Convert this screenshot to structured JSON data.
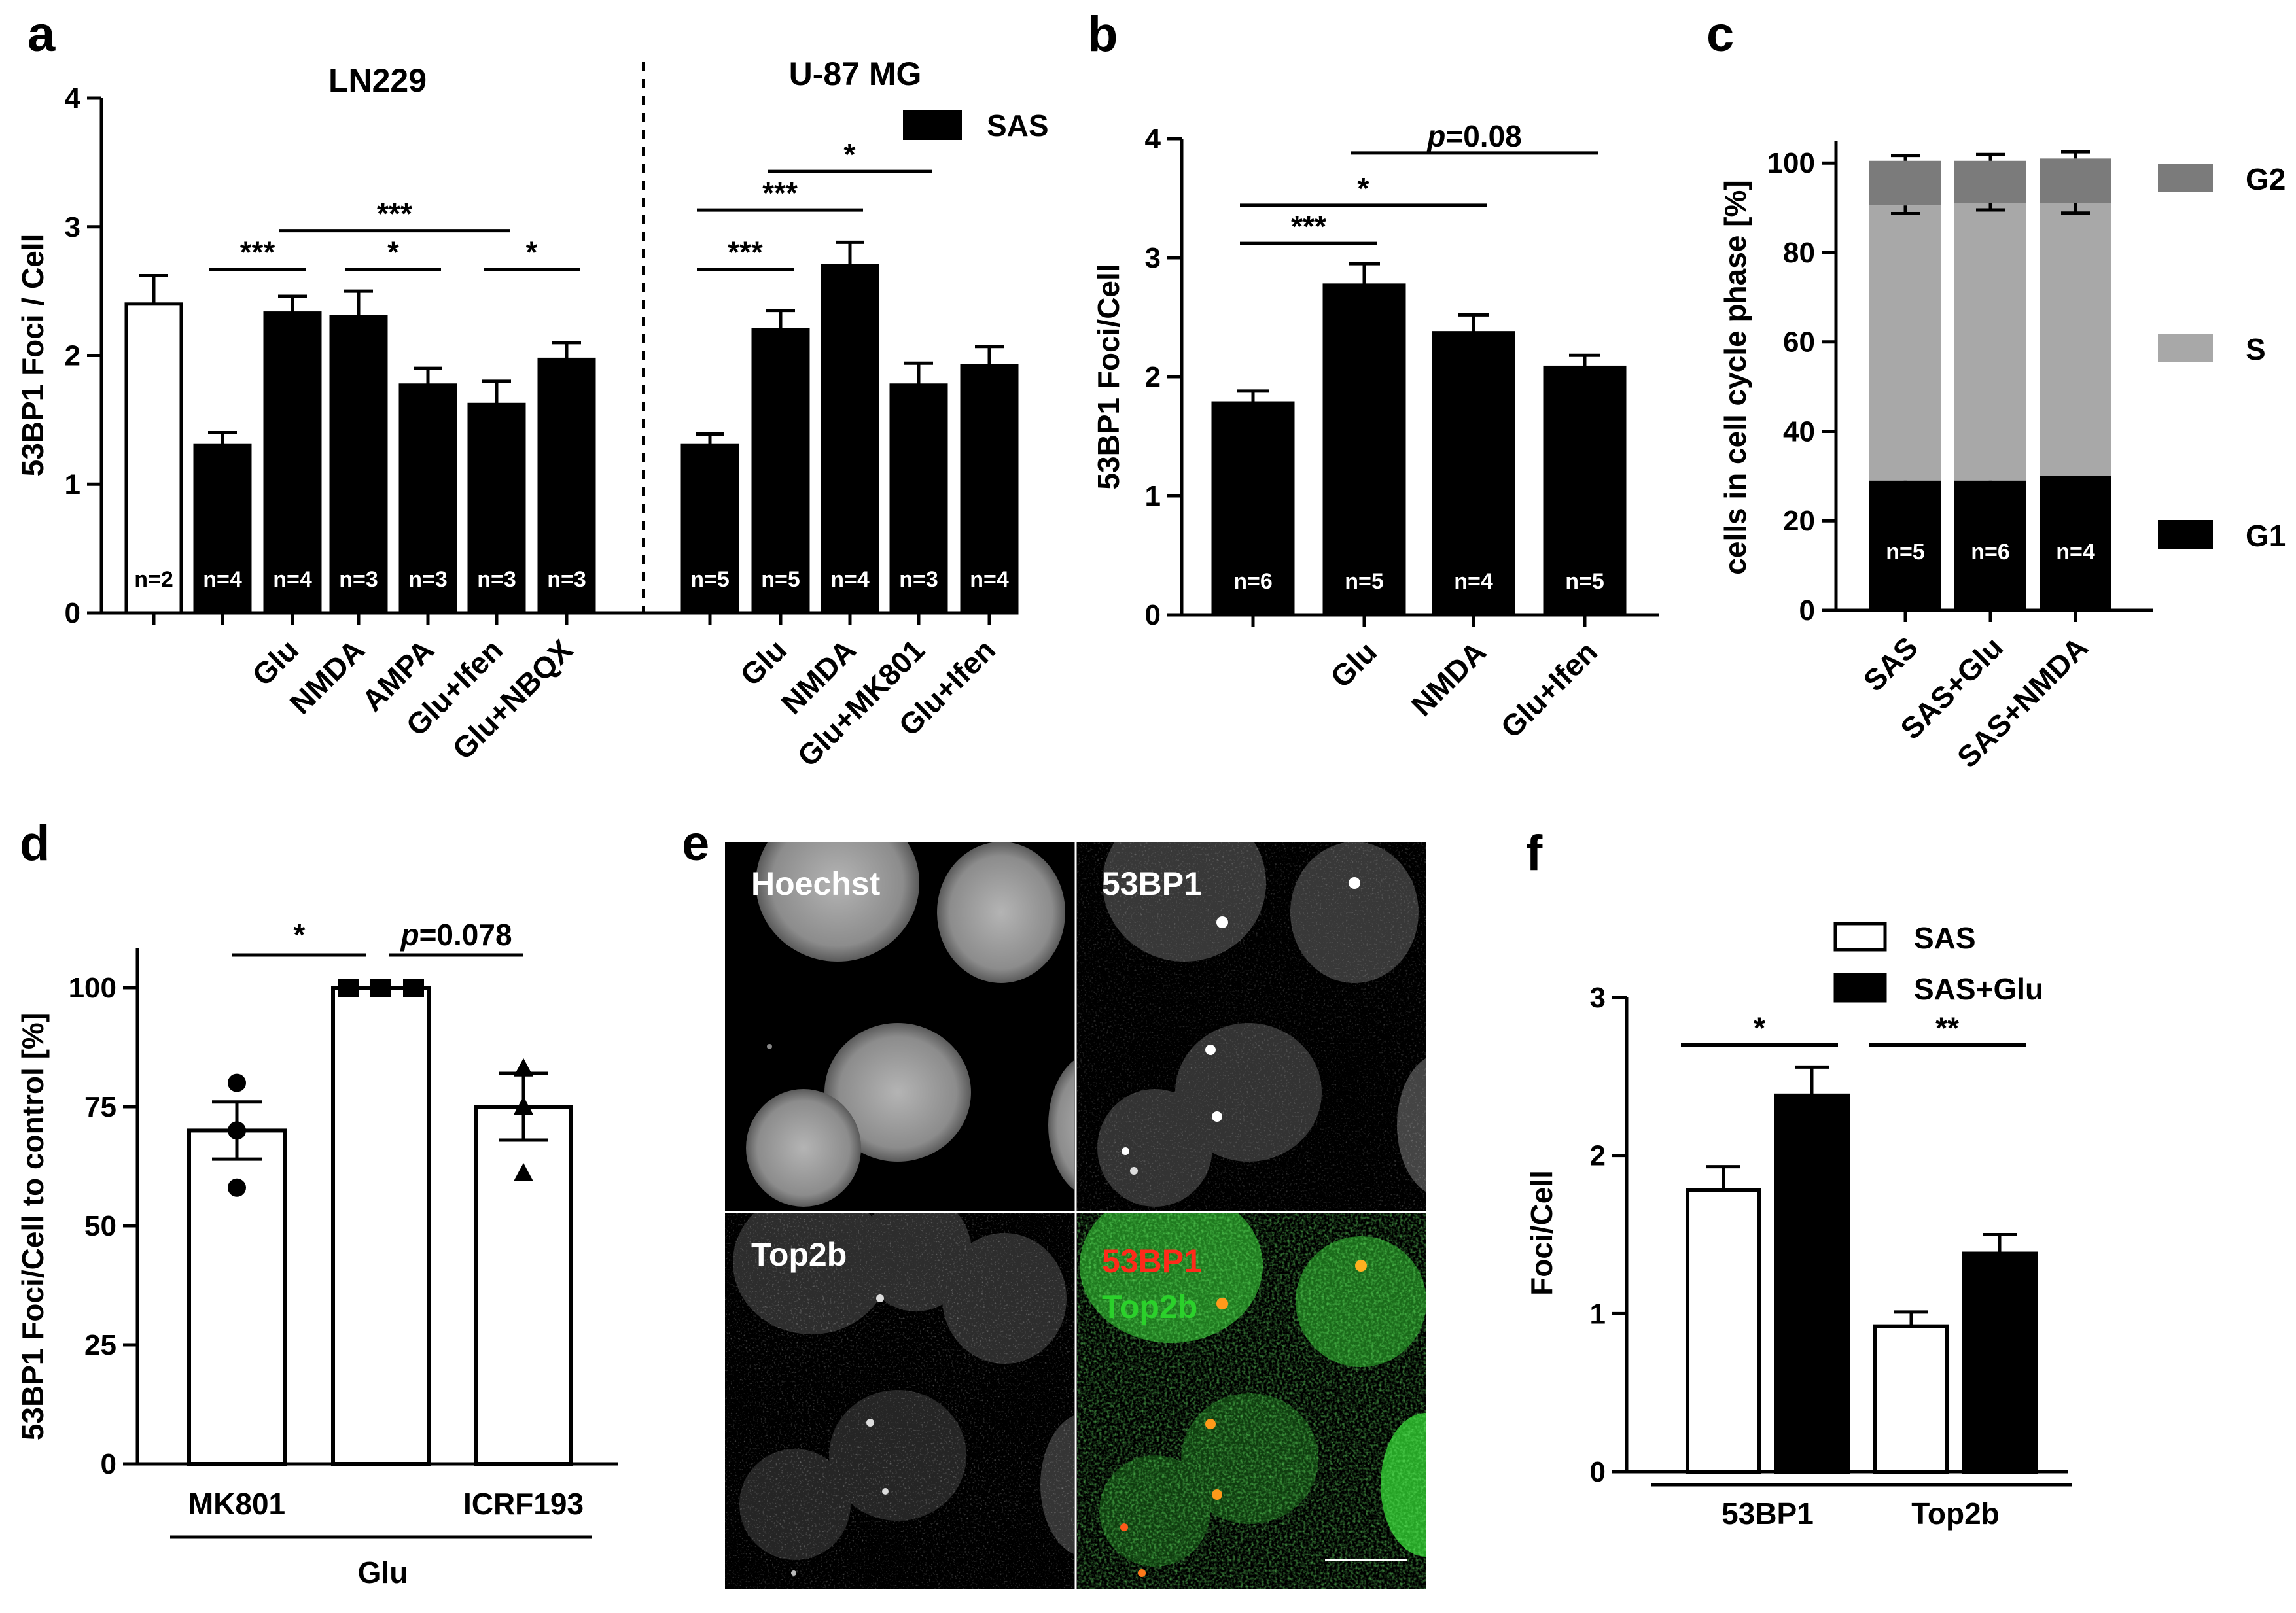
{
  "figure": {
    "panel_labels": [
      "a",
      "b",
      "c",
      "d",
      "e",
      "f"
    ]
  },
  "chart_data": [
    {
      "panel": "a",
      "type": "bar",
      "ylabel": "53BP1 Foci / Cell",
      "ylim": [
        0,
        4
      ],
      "yticks": [
        "0",
        "1",
        "2",
        "3",
        "4"
      ],
      "group_labels": [
        "LN229",
        "U-87 MG"
      ],
      "legend": [
        {
          "label": "SAS",
          "color": "#000000"
        }
      ],
      "categories": [
        "",
        "",
        "Glu",
        "NMDA",
        "AMPA",
        "Glu+Ifen",
        "Glu+NBQX",
        "",
        "Glu",
        "NMDA",
        "Glu+MK801",
        "Glu+Ifen"
      ],
      "values": [
        2.4,
        1.3,
        2.33,
        2.3,
        1.77,
        1.62,
        1.97,
        1.3,
        2.2,
        2.7,
        1.77,
        1.92
      ],
      "errors": [
        0.22,
        0.1,
        0.13,
        0.2,
        0.13,
        0.18,
        0.13,
        0.09,
        0.15,
        0.18,
        0.17,
        0.15
      ],
      "fills": [
        "white",
        "black",
        "black",
        "black",
        "black",
        "black",
        "black",
        "black",
        "black",
        "black",
        "black",
        "black"
      ],
      "n_labels": [
        "n=2",
        "n=4",
        "n=4",
        "n=3",
        "n=3",
        "n=3",
        "n=3",
        "n=5",
        "n=5",
        "n=4",
        "n=3",
        "n=4"
      ],
      "significance": [
        {
          "from": 1,
          "to": 2,
          "label": "***",
          "y": 2.67
        },
        {
          "from": 2,
          "to": 5,
          "label": "***",
          "y": 2.97
        },
        {
          "from": 3,
          "to": 4,
          "label": "*",
          "y": 2.67
        },
        {
          "from": 5,
          "to": 6,
          "label": "*",
          "y": 2.67
        },
        {
          "from": 7,
          "to": 8,
          "label": "***",
          "y": 2.67
        },
        {
          "from": 7,
          "to": 9,
          "label": "***",
          "y": 3.13
        },
        {
          "from": 8,
          "to": 10,
          "label": "*",
          "y": 3.43
        }
      ]
    },
    {
      "panel": "b",
      "type": "bar",
      "ylabel": "53BP1 Foci/Cell",
      "ylim": [
        0,
        4
      ],
      "yticks": [
        "0",
        "1",
        "2",
        "3",
        "4"
      ],
      "categories": [
        "",
        "Glu",
        "NMDA",
        "Glu+Ifen"
      ],
      "values": [
        1.78,
        2.77,
        2.37,
        2.08
      ],
      "errors": [
        0.1,
        0.18,
        0.15,
        0.1
      ],
      "n_labels": [
        "n=6",
        "n=5",
        "n=4",
        "n=5"
      ],
      "significance": [
        {
          "from": 0,
          "to": 1,
          "label": "***",
          "y": 3.12
        },
        {
          "from": 0,
          "to": 2,
          "label": "*",
          "y": 3.44
        },
        {
          "from": 1,
          "to": 3,
          "label": "p=0.08",
          "label_italic": "p",
          "label_rest": "=0.08",
          "y": 3.88
        }
      ]
    },
    {
      "panel": "c",
      "type": "bar",
      "stacked": true,
      "ylabel": "cells in cell cycle phase [%]",
      "ylim": [
        0,
        105
      ],
      "yticks": [
        "0",
        "20",
        "40",
        "60",
        "80",
        "100"
      ],
      "categories": [
        "SAS",
        "SAS+Glu",
        "SAS+NMDA"
      ],
      "series": [
        {
          "name": "G1",
          "color": "#000000",
          "values": [
            29,
            29,
            30
          ],
          "errors": [
            0.8,
            0.6,
            0.9
          ]
        },
        {
          "name": "S",
          "color": "#a8a8a8",
          "values": [
            61.5,
            62,
            61
          ],
          "errors": [
            1.8,
            1.5,
            2.2
          ]
        },
        {
          "name": "G2",
          "color": "#7b7b7b",
          "values": [
            10,
            9.5,
            10
          ],
          "errors": [
            1.2,
            1.4,
            1.5
          ]
        }
      ],
      "n_labels": [
        "n=5",
        "n=6",
        "n=4"
      ]
    },
    {
      "panel": "d",
      "type": "bar",
      "ylabel": "53BP1 Foci/Cell to control [%]",
      "ylim": [
        0,
        108
      ],
      "yticks": [
        "0",
        "25",
        "50",
        "75",
        "100"
      ],
      "categories": [
        "MK801",
        "",
        "ICRF193"
      ],
      "group_label": "Glu",
      "values": [
        70,
        100,
        75
      ],
      "errors": [
        6,
        0,
        7
      ],
      "points": [
        [
          80,
          70,
          58
        ],
        [
          100,
          100,
          100
        ],
        [
          83,
          75,
          61
        ]
      ],
      "markers": [
        "circle",
        "square",
        "triangle"
      ],
      "significance": [
        {
          "from": 0,
          "to": 1,
          "label": "*",
          "y": 108
        },
        {
          "from": 1,
          "to": 2,
          "label": "p=0.078",
          "label_italic": "p",
          "label_rest": "=0.078",
          "y": 108
        }
      ]
    },
    {
      "panel": "f",
      "type": "bar",
      "ylabel": "Foci/Cell",
      "ylim": [
        0,
        3
      ],
      "yticks": [
        "0",
        "1",
        "2",
        "3"
      ],
      "groups": [
        "53BP1",
        "Top2b"
      ],
      "series": [
        {
          "name": "SAS",
          "fill": "white",
          "values": [
            1.78,
            0.92
          ],
          "errors": [
            0.15,
            0.09
          ]
        },
        {
          "name": "SAS+Glu",
          "fill": "black",
          "values": [
            2.38,
            1.38
          ],
          "errors": [
            0.18,
            0.12
          ]
        }
      ],
      "significance": [
        {
          "group": 0,
          "label": "*",
          "y": 2.7
        },
        {
          "group": 1,
          "label": "**",
          "y": 2.7
        }
      ]
    }
  ],
  "micrographs": {
    "panel": "e",
    "quadrants": [
      "Hoechst",
      "53BP1",
      "Top2b",
      "merge"
    ],
    "labels": {
      "hoechst": "Hoechst",
      "p53bp1": "53BP1",
      "top2b": "Top2b",
      "merge_red": "53BP1",
      "merge_green": "Top2b"
    },
    "colors": {
      "red": "#ff2a1a",
      "green": "#2bd12b"
    }
  }
}
